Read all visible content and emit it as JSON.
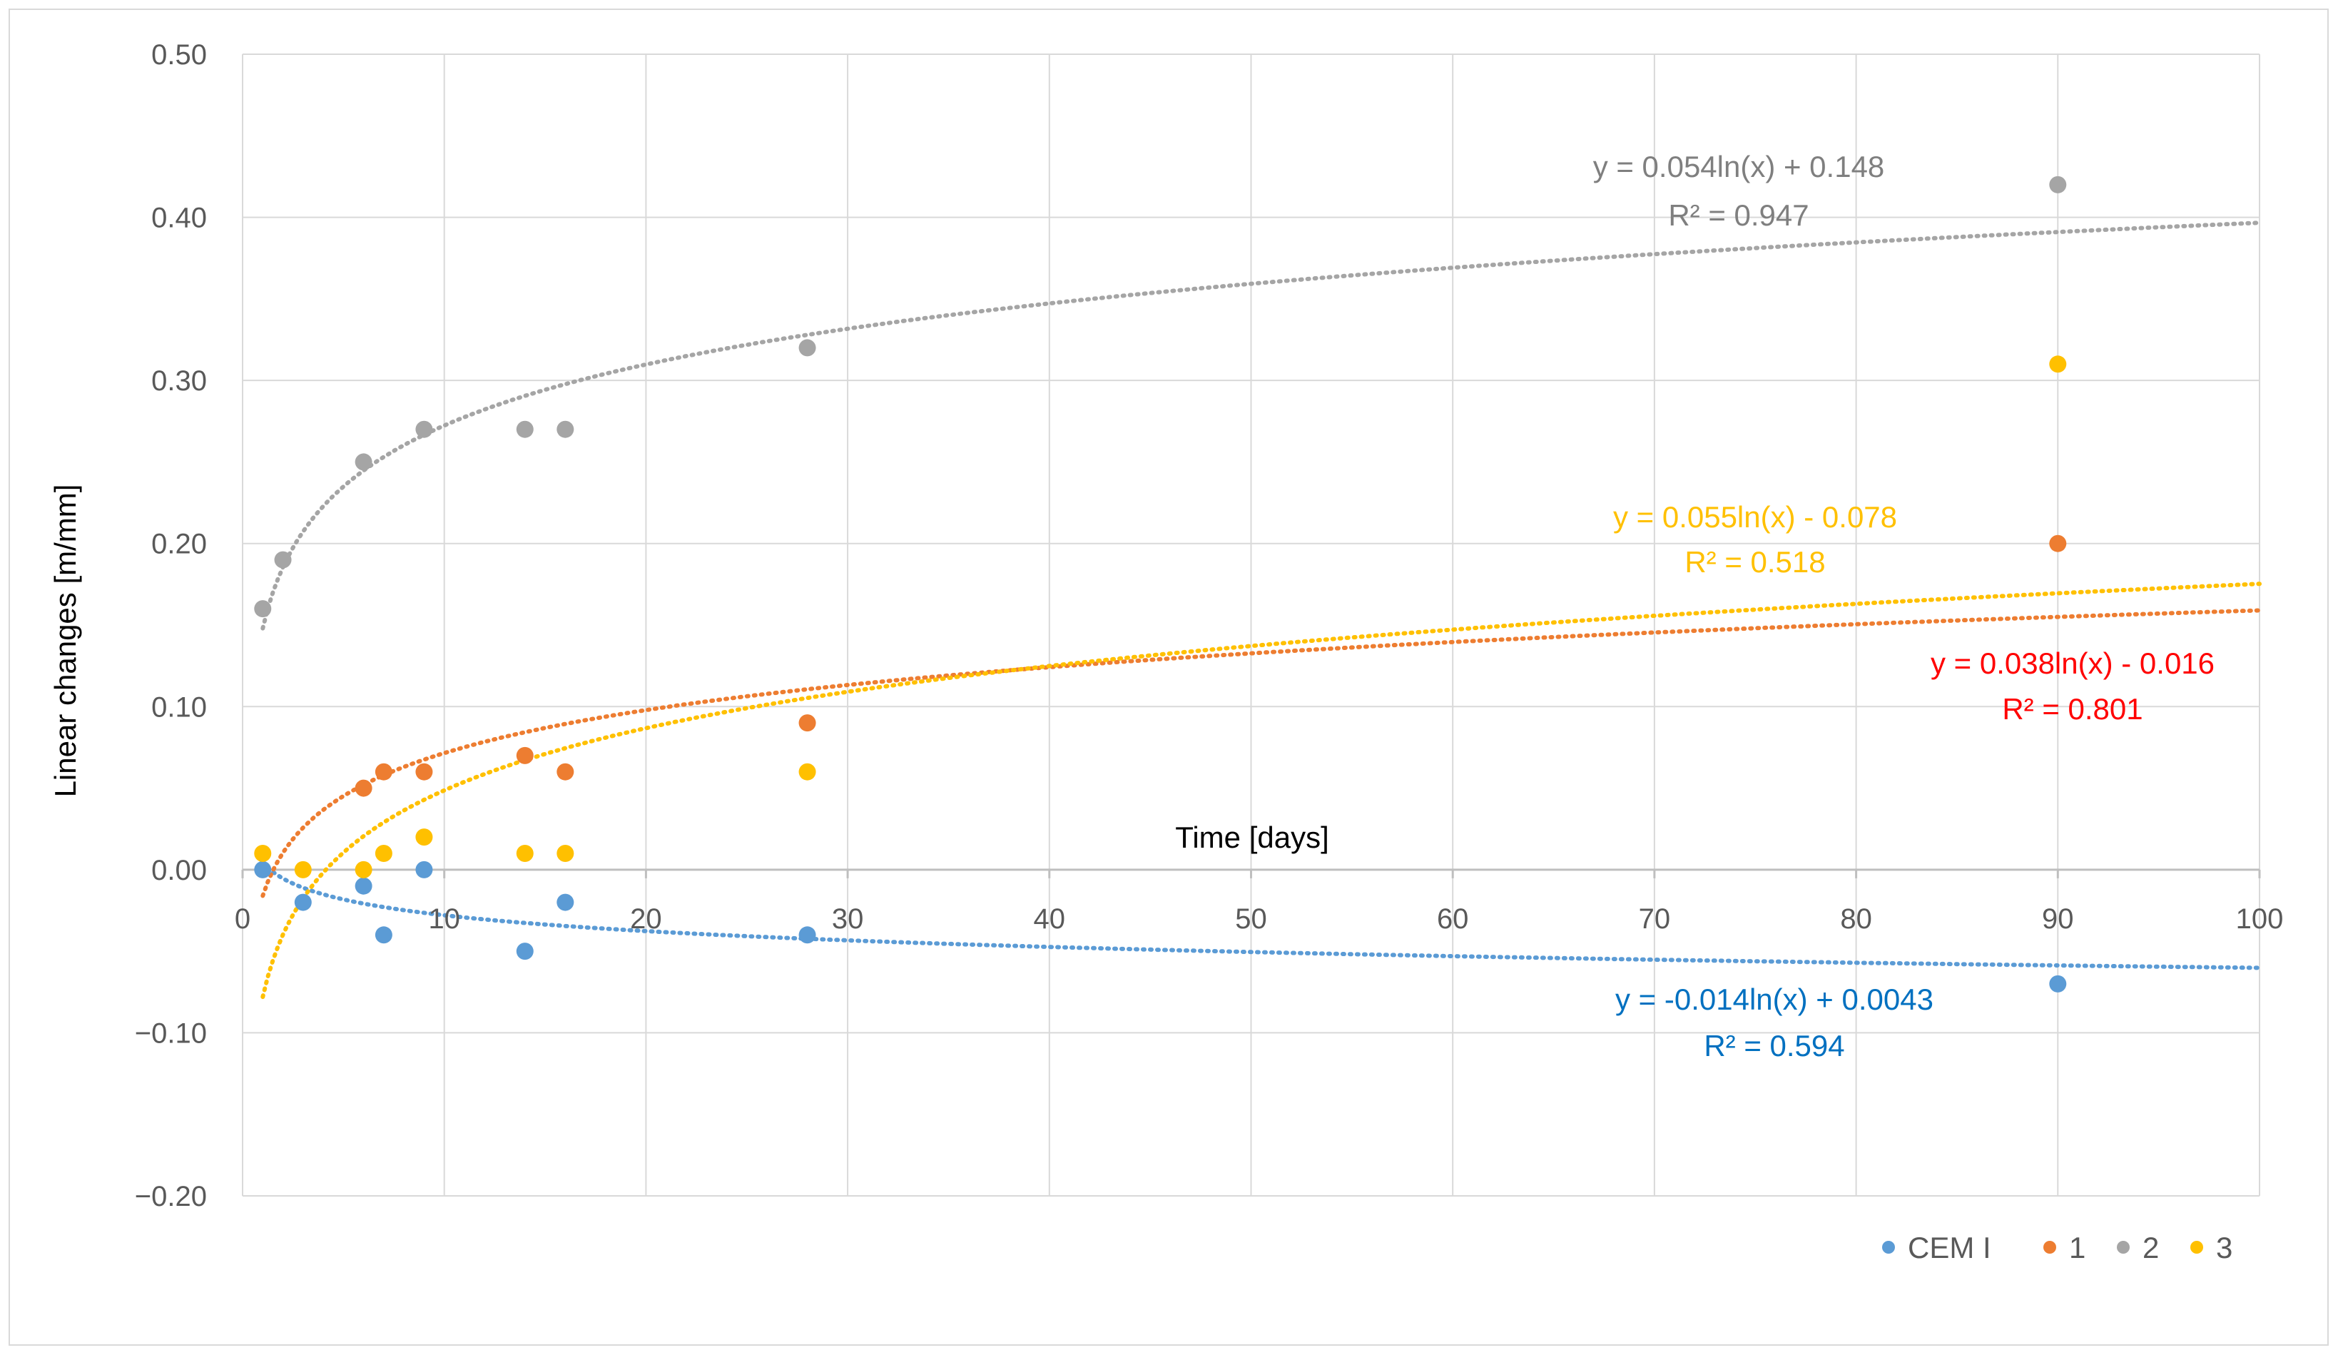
{
  "chart_data": {
    "type": "scatter",
    "xlabel": "Time [days]",
    "ylabel": "Linear changes [m/mm]",
    "xlim": [
      0,
      100
    ],
    "ylim": [
      -0.2,
      0.5
    ],
    "x_ticks": [
      "0",
      "10",
      "20",
      "30",
      "40",
      "50",
      "60",
      "70",
      "80",
      "90",
      "100"
    ],
    "y_ticks": [
      "0.50",
      "0.40",
      "0.30",
      "0.20",
      "0.10",
      "0.00",
      "−0.10",
      "−0.20"
    ],
    "grid": true,
    "legend_position": "bottom-right",
    "series": [
      {
        "name": "CEM I",
        "color": "#5b9bd5",
        "x": [
          1,
          3,
          6,
          7,
          9,
          14,
          16,
          28,
          90
        ],
        "y": [
          0.0,
          -0.02,
          -0.01,
          -0.04,
          0.0,
          -0.05,
          -0.02,
          -0.04,
          -0.07
        ],
        "trendline": {
          "type": "log",
          "a": -0.014,
          "b": 0.0043,
          "equation": "y = -0.014ln(x) + 0.0043",
          "r2": "R² = 0.594",
          "color": "#0070c0"
        }
      },
      {
        "name": "1",
        "color": "#ed7d31",
        "x": [
          6,
          7,
          9,
          14,
          16,
          28,
          90
        ],
        "y": [
          0.05,
          0.06,
          0.06,
          0.07,
          0.06,
          0.09,
          0.2
        ],
        "trendline": {
          "type": "log",
          "a": 0.038,
          "b": -0.016,
          "equation": "y = 0.038ln(x) - 0.016",
          "r2": "R² = 0.801",
          "color": "#ff0000"
        }
      },
      {
        "name": "2",
        "color": "#a5a5a5",
        "x": [
          1,
          2,
          6,
          9,
          14,
          16,
          28,
          90
        ],
        "y": [
          0.16,
          0.19,
          0.25,
          0.27,
          0.27,
          0.27,
          0.32,
          0.42
        ],
        "trendline": {
          "type": "log",
          "a": 0.054,
          "b": 0.148,
          "equation": "y = 0.054ln(x) + 0.148",
          "r2": "R² = 0.947",
          "color": "#7f7f7f"
        }
      },
      {
        "name": "3",
        "color": "#ffc000",
        "x": [
          1,
          3,
          6,
          7,
          9,
          14,
          16,
          28,
          90
        ],
        "y": [
          0.01,
          0.0,
          0.0,
          0.01,
          0.02,
          0.01,
          0.01,
          0.06,
          0.31
        ],
        "trendline": {
          "type": "log",
          "a": 0.055,
          "b": -0.078,
          "equation": "y = 0.055ln(x) - 0.078",
          "r2": "R² = 0.518",
          "color": "#ffc000"
        }
      }
    ]
  }
}
